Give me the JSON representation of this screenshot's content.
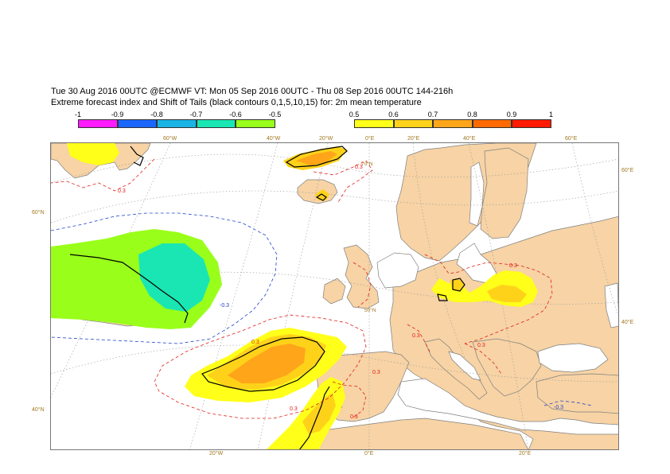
{
  "header": {
    "line1": "Tue 30 Aug 2016 00UTC @ECMWF VT: Mon 05 Sep 2016 00UTC - Thu 08 Sep 2016 00UTC  144-216h",
    "line2": "Extreme forecast index and Shift of Tails (black contours 0,1,5,10,15) for: 2m mean temperature"
  },
  "colorbar": {
    "negative": {
      "labels": [
        "-1",
        "-0.9",
        "-0.8",
        "-0.7",
        "-0.6",
        "-0.5"
      ],
      "colors": [
        "#ff1aff",
        "#1a66ff",
        "#1ab3e6",
        "#1ae6b3",
        "#99ff1a"
      ]
    },
    "positive": {
      "labels": [
        "0.5",
        "0.6",
        "0.7",
        "0.8",
        "0.9",
        "1"
      ],
      "colors": [
        "#ffff1a",
        "#ffd21a",
        "#ffa51a",
        "#ff6a00",
        "#ff1a00"
      ]
    }
  },
  "map": {
    "colors": {
      "ocean": "#ffffff",
      "land": "#f7d3a5",
      "coast": "#7f7f7f",
      "graticule": "#9a9a9a",
      "red_contour": "#e0201a",
      "blue_contour": "#2244cc",
      "geo_label": "#a0761e"
    },
    "top_longitude_labels": [
      "60°W",
      "40°W",
      "20°W",
      "0°E",
      "20°E",
      "40°E",
      "60°E"
    ],
    "bottom_longitude_labels": [
      "20°W",
      "0°E",
      "20°E"
    ],
    "left_latitude_labels": [
      "60°N",
      "40°N"
    ],
    "right_latitude_labels": [
      "60°E",
      "40°E"
    ],
    "inner_labels": [
      "70°N",
      "50°N"
    ],
    "contour_labels": {
      "positive": [
        "0.3",
        "0.3",
        "0.3",
        "0.3",
        "0.3",
        "0.3",
        "0.3",
        "0.3",
        "0.3"
      ],
      "negative": [
        "-0.3",
        "-0.3"
      ]
    }
  }
}
